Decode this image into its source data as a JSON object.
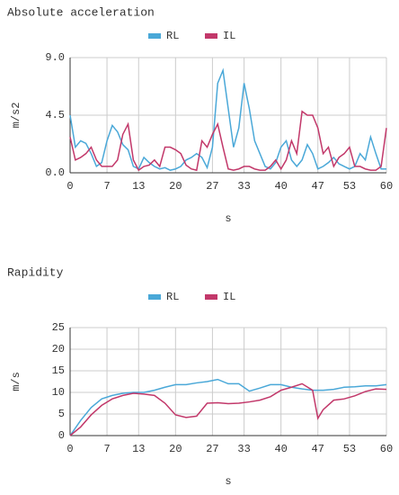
{
  "chart_data": [
    {
      "type": "line",
      "title": "Absolute acceleration",
      "ylabel": "m/s2",
      "xlabel": "s",
      "x": [
        0,
        1,
        2,
        3,
        4,
        5,
        6,
        7,
        8,
        9,
        10,
        11,
        12,
        13,
        14,
        15,
        16,
        17,
        18,
        19,
        20,
        21,
        22,
        23,
        24,
        25,
        26,
        27,
        28,
        29,
        30,
        31,
        32,
        33,
        34,
        35,
        36,
        37,
        38,
        39,
        40,
        41,
        42,
        43,
        44,
        45,
        46,
        47,
        48,
        49,
        50,
        51,
        52,
        53,
        54,
        55,
        56,
        57,
        58,
        59,
        60
      ],
      "series": [
        {
          "name": "RL",
          "color": "#4aa8d8",
          "values": [
            4.5,
            2.0,
            2.5,
            2.3,
            1.5,
            0.5,
            0.8,
            2.5,
            3.7,
            3.2,
            2.2,
            1.8,
            0.5,
            0.3,
            1.2,
            0.8,
            0.5,
            0.3,
            0.4,
            0.2,
            0.3,
            0.5,
            1.0,
            1.2,
            1.5,
            1.2,
            0.4,
            2.0,
            7.0,
            8.0,
            5.0,
            2.0,
            3.5,
            7.0,
            5.0,
            2.5,
            1.5,
            0.5,
            0.3,
            0.8,
            2.0,
            2.5,
            1.0,
            0.5,
            1.0,
            2.2,
            1.5,
            0.3,
            0.5,
            0.8,
            1.2,
            0.7,
            0.5,
            0.3,
            0.5,
            1.5,
            1.0,
            2.8,
            1.5,
            0.3,
            0.3
          ]
        },
        {
          "name": "IL",
          "color": "#c2386a",
          "values": [
            2.8,
            1.0,
            1.2,
            1.5,
            2.0,
            1.0,
            0.5,
            0.5,
            0.5,
            1.0,
            3.0,
            3.8,
            1.0,
            0.2,
            0.5,
            0.6,
            1.0,
            0.5,
            2.0,
            2.0,
            1.8,
            1.5,
            0.6,
            0.3,
            0.2,
            2.5,
            2.0,
            3.0,
            3.8,
            2.0,
            0.3,
            0.2,
            0.3,
            0.5,
            0.5,
            0.3,
            0.2,
            0.2,
            0.5,
            1.0,
            0.3,
            1.0,
            2.5,
            1.5,
            4.8,
            4.5,
            4.5,
            3.5,
            1.5,
            2.0,
            0.5,
            1.2,
            1.5,
            2.0,
            0.5,
            0.5,
            0.3,
            0.2,
            0.2,
            0.5,
            3.5
          ]
        }
      ],
      "xlim": [
        0,
        60
      ],
      "xticks": [
        0,
        7,
        13,
        20,
        27,
        33,
        40,
        47,
        53,
        60
      ],
      "ylim": [
        0,
        9
      ],
      "yticks": [
        {
          "value": 0,
          "label": "0.0"
        },
        {
          "value": 4.5,
          "label": "4.5"
        },
        {
          "value": 9,
          "label": "9.0"
        }
      ],
      "grid": true
    },
    {
      "type": "line",
      "title": "Rapidity",
      "ylabel": "m/s",
      "xlabel": "s",
      "x": [
        0,
        2,
        4,
        6,
        8,
        10,
        12,
        14,
        16,
        18,
        20,
        22,
        24,
        26,
        28,
        30,
        32,
        34,
        36,
        38,
        40,
        42,
        44,
        46,
        47,
        48,
        50,
        52,
        54,
        56,
        58,
        60
      ],
      "series": [
        {
          "name": "RL",
          "color": "#4aa8d8",
          "values": [
            0,
            3.5,
            6.5,
            8.5,
            9.3,
            9.8,
            10,
            10,
            10.5,
            11.2,
            11.8,
            11.8,
            12.2,
            12.5,
            13,
            12,
            12,
            10.3,
            11,
            11.8,
            11.8,
            11.2,
            10.8,
            10.5,
            10.5,
            10.5,
            10.7,
            11.2,
            11.3,
            11.5,
            11.5,
            11.8
          ]
        },
        {
          "name": "IL",
          "color": "#c2386a",
          "values": [
            0,
            2,
            4.8,
            7,
            8.5,
            9.3,
            9.8,
            9.6,
            9.3,
            7.5,
            4.8,
            4.2,
            4.5,
            7.5,
            7.6,
            7.4,
            7.5,
            7.8,
            8.2,
            9,
            10.5,
            11.2,
            12,
            10.5,
            4,
            6,
            8.2,
            8.5,
            9.2,
            10.2,
            10.8,
            10.7
          ]
        }
      ],
      "xlim": [
        0,
        60
      ],
      "xticks": [
        0,
        7,
        13,
        20,
        27,
        33,
        40,
        47,
        53,
        60
      ],
      "ylim": [
        0,
        25
      ],
      "yticks": [
        0,
        5,
        10,
        15,
        20,
        25
      ],
      "grid": true
    }
  ]
}
